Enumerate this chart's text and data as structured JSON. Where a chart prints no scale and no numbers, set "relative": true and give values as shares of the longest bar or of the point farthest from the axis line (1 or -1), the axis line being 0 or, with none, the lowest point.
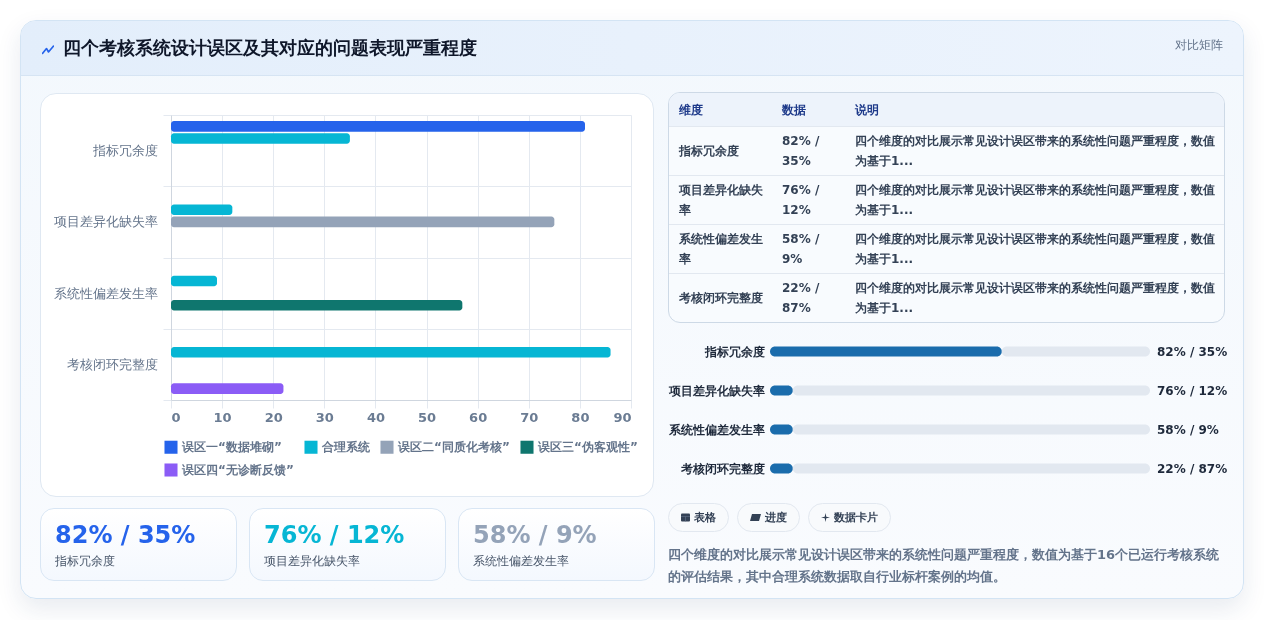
{
  "chart_data": [
    {
      "type": "bar",
      "title": "四个考核系统设计误区及其对应的问题表现严重程度",
      "orientation": "horizontal",
      "categories": [
        "指标冗余度",
        "项目差异化缺失率",
        "系统性偏差发生率",
        "考核闭环完整度"
      ],
      "series": [
        {
          "name": "误区一“数据堆砌”",
          "color": "#2563eb",
          "values": [
            81,
            null,
            null,
            null
          ]
        },
        {
          "name": "合理系统",
          "color": "#06b6d4",
          "values": [
            35,
            12,
            9,
            86
          ]
        },
        {
          "name": "误区二“同质化考核”",
          "color": "#94a3b8",
          "values": [
            null,
            75,
            null,
            null
          ]
        },
        {
          "name": "误区三“伪客观性”",
          "color": "#0f766e",
          "values": [
            null,
            null,
            57,
            null
          ]
        },
        {
          "name": "误区四“无诊断反馈”",
          "color": "#8b5cf6",
          "values": [
            null,
            null,
            null,
            22
          ]
        }
      ],
      "xlim": [
        0,
        90
      ],
      "xticks": [
        0,
        10,
        20,
        30,
        40,
        50,
        60,
        70,
        80,
        90
      ],
      "grid": true,
      "legend": "bottom"
    },
    {
      "type": "other",
      "annotations": [
        "82% / 35%",
        "指标冗余度",
        "76% / 12%",
        "项目差异化缺失率",
        "58% / 9%",
        "系统性偏差发生率"
      ]
    },
    {
      "type": "other",
      "title": "对比矩阵",
      "annotations": [
        "维度",
        "数据",
        "说明",
        "指标冗余度",
        "82% / 35%",
        "四个维度的对比展示常见设计误区带来的系统性问题严重程度，数值为基于1...",
        "项目差异化缺失率",
        "76% / 12%",
        "四个维度的对比展示常见设计误区带来的系统性问题严重程度，数值为基于1...",
        "系统性偏差发生率",
        "58% / 9%",
        "四个维度的对比展示常见设计误区带来的系统性问题严重程度，数值为基于1...",
        "考核闭环完整度",
        "22% / 87%",
        "四个维度的对比展示常见设计误区带来的系统性问题严重程度，数值为基于1..."
      ]
    },
    {
      "type": "bar",
      "orientation": "horizontal",
      "stacked": true,
      "relative": true,
      "categories": [
        "指标冗余度",
        "项目差异化缺失率",
        "系统性偏差发生率",
        "考核闭环完整度"
      ],
      "series": [
        {
          "color": "#1a6cac",
          "values": [
            0.61,
            0.06,
            0.06,
            0.06
          ]
        },
        {
          "color": "#e2e8f0",
          "values": [
            0.39,
            0.94,
            0.94,
            0.94
          ]
        }
      ],
      "annotations": [
        "82% / 35%",
        "76% / 12%",
        "58% / 9%",
        "22% / 87%"
      ]
    },
    {
      "type": "other",
      "annotations": [
        "表格",
        "进度",
        "数据卡片",
        "四个维度的对比展示常见设计误区带来的系统性问题严重程度，数值为基于16个已运行考核系统的评估结果，其中合理系统数据取自行业标杆案例的均值。"
      ]
    }
  ]
}
